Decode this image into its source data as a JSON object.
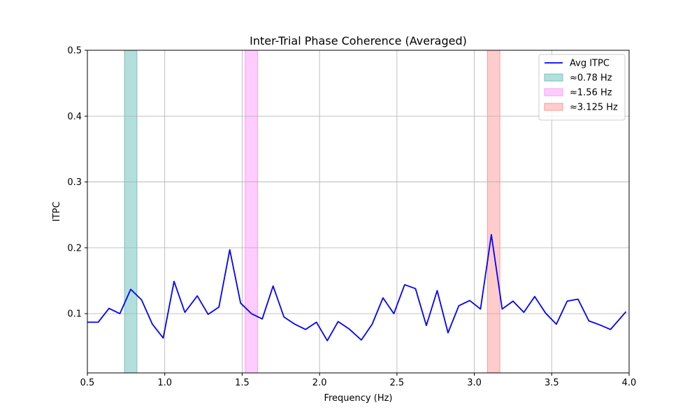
{
  "chart_data": {
    "type": "line",
    "title": "Inter-Trial Phase Coherence (Averaged)",
    "xlabel": "Frequency (Hz)",
    "ylabel": "ITPC",
    "xlim": [
      0.5,
      4.0
    ],
    "ylim": [
      0.01,
      0.5
    ],
    "xticks": [
      0.5,
      1.0,
      1.5,
      2.0,
      2.5,
      3.0,
      3.5,
      4.0
    ],
    "xtick_labels": [
      "0.5",
      "1.0",
      "1.5",
      "2.0",
      "2.5",
      "3.0",
      "3.5",
      "4.0"
    ],
    "yticks": [
      0.1,
      0.2,
      0.3,
      0.4,
      0.5
    ],
    "ytick_labels": [
      "0.1",
      "0.2",
      "0.3",
      "0.4",
      "0.5"
    ],
    "grid": true,
    "legend_position": "top-right",
    "series": [
      {
        "name": "Avg ITPC",
        "color": "#0000ff",
        "x": [
          0.5,
          0.57,
          0.64,
          0.71,
          0.78,
          0.85,
          0.92,
          0.99,
          1.06,
          1.13,
          1.21,
          1.28,
          1.35,
          1.42,
          1.49,
          1.56,
          1.63,
          1.7,
          1.77,
          1.84,
          1.91,
          1.98,
          2.05,
          2.12,
          2.19,
          2.27,
          2.34,
          2.41,
          2.48,
          2.55,
          2.62,
          2.69,
          2.76,
          2.83,
          2.9,
          2.97,
          3.04,
          3.11,
          3.18,
          3.25,
          3.32,
          3.39,
          3.46,
          3.53,
          3.6,
          3.67,
          3.74,
          3.81,
          3.88,
          3.98
        ],
        "values": [
          0.087,
          0.087,
          0.108,
          0.1,
          0.137,
          0.121,
          0.084,
          0.063,
          0.149,
          0.102,
          0.127,
          0.099,
          0.11,
          0.197,
          0.116,
          0.1,
          0.092,
          0.142,
          0.095,
          0.084,
          0.076,
          0.087,
          0.059,
          0.088,
          0.077,
          0.06,
          0.084,
          0.124,
          0.1,
          0.144,
          0.138,
          0.082,
          0.135,
          0.071,
          0.112,
          0.12,
          0.107,
          0.22,
          0.107,
          0.119,
          0.102,
          0.126,
          0.101,
          0.084,
          0.119,
          0.122,
          0.089,
          0.083,
          0.076,
          0.103
        ]
      }
    ],
    "bands": [
      {
        "label": "≈0.78 Hz",
        "x0": 0.74,
        "x1": 0.82,
        "fill": "#b2dfdb",
        "edge": "#7fbfba"
      },
      {
        "label": "≈1.56 Hz",
        "x0": 1.52,
        "x1": 1.6,
        "fill": "#ffccff",
        "edge": "#ff99ff"
      },
      {
        "label": "≈3.125 Hz",
        "x0": 3.085,
        "x1": 3.165,
        "fill": "#ffcccc",
        "edge": "#ff9999"
      }
    ]
  }
}
